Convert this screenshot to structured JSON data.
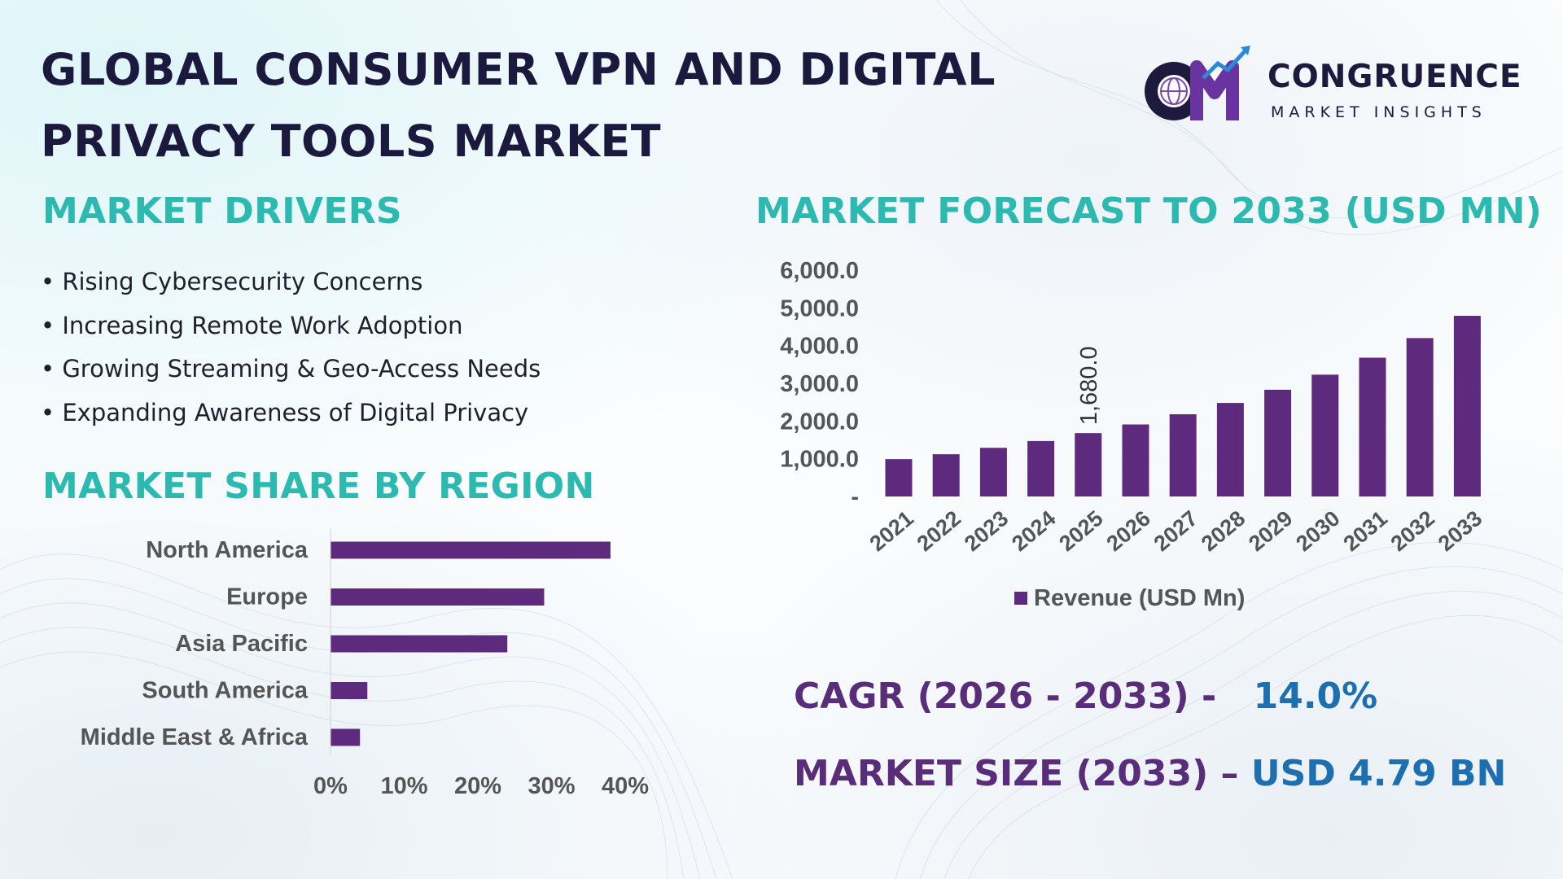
{
  "title": "GLOBAL CONSUMER VPN AND DIGITAL PRIVACY TOOLS MARKET",
  "logo": {
    "brand": "CONGRUENCE",
    "tagline": "MARKET INSIGHTS"
  },
  "drivers": {
    "heading": "MARKET DRIVERS",
    "items": [
      "Rising Cybersecurity Concerns",
      "Increasing Remote Work Adoption",
      "Growing Streaming & Geo-Access Needs",
      "Expanding Awareness of Digital Privacy"
    ]
  },
  "region": {
    "heading": "MARKET SHARE BY REGION"
  },
  "forecast": {
    "heading": "MARKET FORECAST TO 2033 (USD MN)"
  },
  "stats": {
    "cagr_label": "CAGR (2026 - 2033) -",
    "cagr_value": "14.0%",
    "size_label": "MARKET SIZE (2033) –",
    "size_value": "USD 4.79 BN"
  },
  "colors": {
    "bar": "#5d2a7e",
    "accent": "#2bb9b0",
    "title": "#1b1a3e",
    "value_blue": "#1d6fb0"
  },
  "chart_data": [
    {
      "type": "bar",
      "orientation": "horizontal",
      "categories": [
        "North America",
        "Europe",
        "Asia Pacific",
        "South America",
        "Middle East & Africa"
      ],
      "values": [
        38,
        29,
        24,
        5,
        4
      ],
      "x_ticks": [
        "0%",
        "10%",
        "20%",
        "30%",
        "40%"
      ],
      "xlim": [
        0,
        40
      ],
      "grid": false
    },
    {
      "type": "bar",
      "categories": [
        "2021",
        "2022",
        "2023",
        "2024",
        "2025",
        "2026",
        "2027",
        "2028",
        "2029",
        "2030",
        "2031",
        "2032",
        "2033"
      ],
      "series": [
        {
          "name": "Revenue (USD Mn)",
          "values": [
            990,
            1120,
            1290,
            1470,
            1680,
            1910,
            2180,
            2480,
            2830,
            3230,
            3680,
            4200,
            4790
          ]
        }
      ],
      "data_labels": [
        {
          "category": "2025",
          "text": "1,680.0"
        }
      ],
      "y_ticks": [
        "-",
        "1,000.0",
        "2,000.0",
        "3,000.0",
        "4,000.0",
        "5,000.0",
        "6,000.0"
      ],
      "ylim": [
        0,
        6000
      ],
      "legend": "bottom",
      "grid": false
    }
  ]
}
